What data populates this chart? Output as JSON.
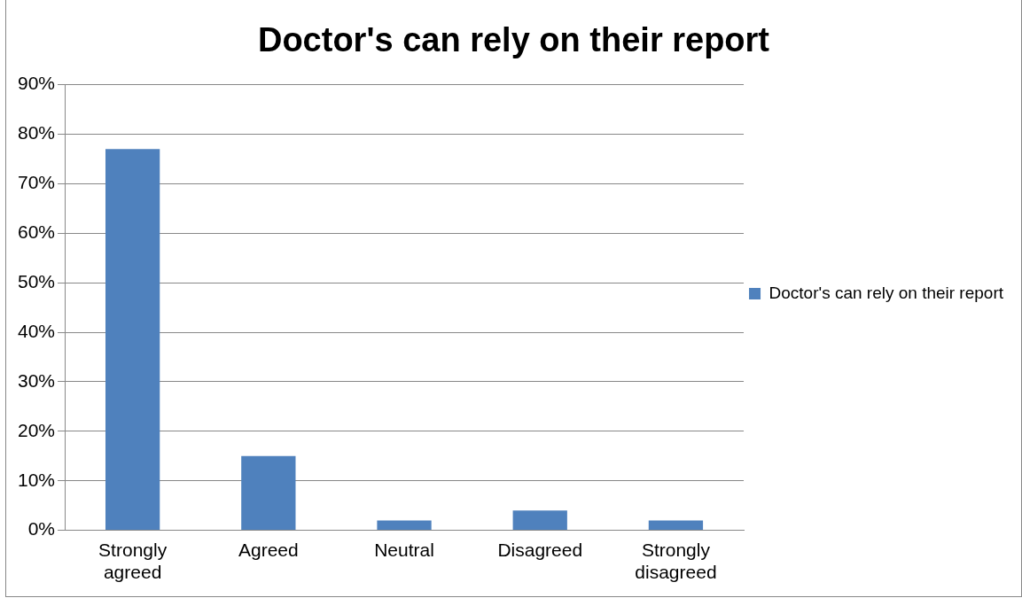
{
  "chart_data": {
    "type": "bar",
    "title": "Doctor's can rely on their report",
    "categories": [
      "Strongly agreed",
      "Agreed",
      "Neutral",
      "Disagreed",
      "Strongly disagreed"
    ],
    "series": [
      {
        "name": "Doctor's can rely on their report",
        "color": "#4f81bd",
        "values": [
          77,
          15,
          2,
          4,
          2
        ]
      }
    ],
    "ylim": [
      0,
      90
    ],
    "yticks": [
      {
        "value": 0,
        "label": "0%"
      },
      {
        "value": 10,
        "label": "10%"
      },
      {
        "value": 20,
        "label": "20%"
      },
      {
        "value": 30,
        "label": "30%"
      },
      {
        "value": 40,
        "label": "40%"
      },
      {
        "value": 50,
        "label": "50%"
      },
      {
        "value": 60,
        "label": "60%"
      },
      {
        "value": 70,
        "label": "70%"
      },
      {
        "value": 80,
        "label": "80%"
      },
      {
        "value": 90,
        "label": "90%"
      }
    ],
    "grid": "y",
    "legend": "right"
  }
}
